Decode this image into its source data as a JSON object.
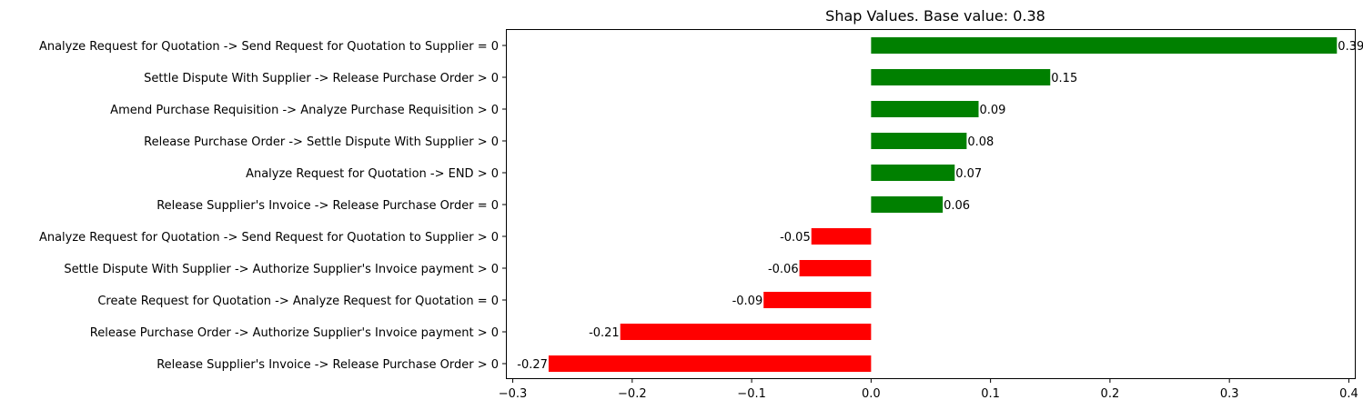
{
  "chart_data": {
    "type": "bar",
    "orientation": "horizontal",
    "title": "Shap Values. Base value: 0.38",
    "xlabel": "",
    "ylabel": "",
    "xlim": [
      -0.305,
      0.405
    ],
    "grid": false,
    "legend": "none",
    "categories": [
      "Analyze Request for Quotation -> Send Request for Quotation to Supplier = 0",
      "Settle Dispute With Supplier -> Release Purchase Order > 0",
      "Amend Purchase Requisition -> Analyze Purchase Requisition > 0",
      "Release Purchase Order -> Settle Dispute With Supplier > 0",
      "Analyze Request for Quotation -> END > 0",
      "Release Supplier's Invoice -> Release Purchase Order = 0",
      "Analyze Request for Quotation -> Send Request for Quotation to Supplier > 0",
      "Settle Dispute With Supplier -> Authorize Supplier's Invoice payment > 0",
      "Create Request for Quotation -> Analyze Request for Quotation = 0",
      "Release Purchase Order -> Authorize Supplier's Invoice payment > 0",
      "Release Supplier's Invoice -> Release Purchase Order > 0"
    ],
    "values": [
      0.39,
      0.15,
      0.09,
      0.08,
      0.07,
      0.06,
      -0.05,
      -0.06,
      -0.09,
      -0.21,
      -0.27
    ],
    "value_labels": [
      "0.39",
      "0.15",
      "0.09",
      "0.08",
      "0.07",
      "0.06",
      "-0.05",
      "-0.06",
      "-0.09",
      "-0.21",
      "-0.27"
    ],
    "xticks": [
      -0.3,
      -0.2,
      -0.1,
      0.0,
      0.1,
      0.2,
      0.3,
      0.4
    ],
    "xtick_labels": [
      "−0.3",
      "−0.2",
      "−0.1",
      "0.0",
      "0.1",
      "0.2",
      "0.3",
      "0.4"
    ],
    "colors": {
      "positive": "#008000",
      "negative": "#ff0000"
    }
  }
}
